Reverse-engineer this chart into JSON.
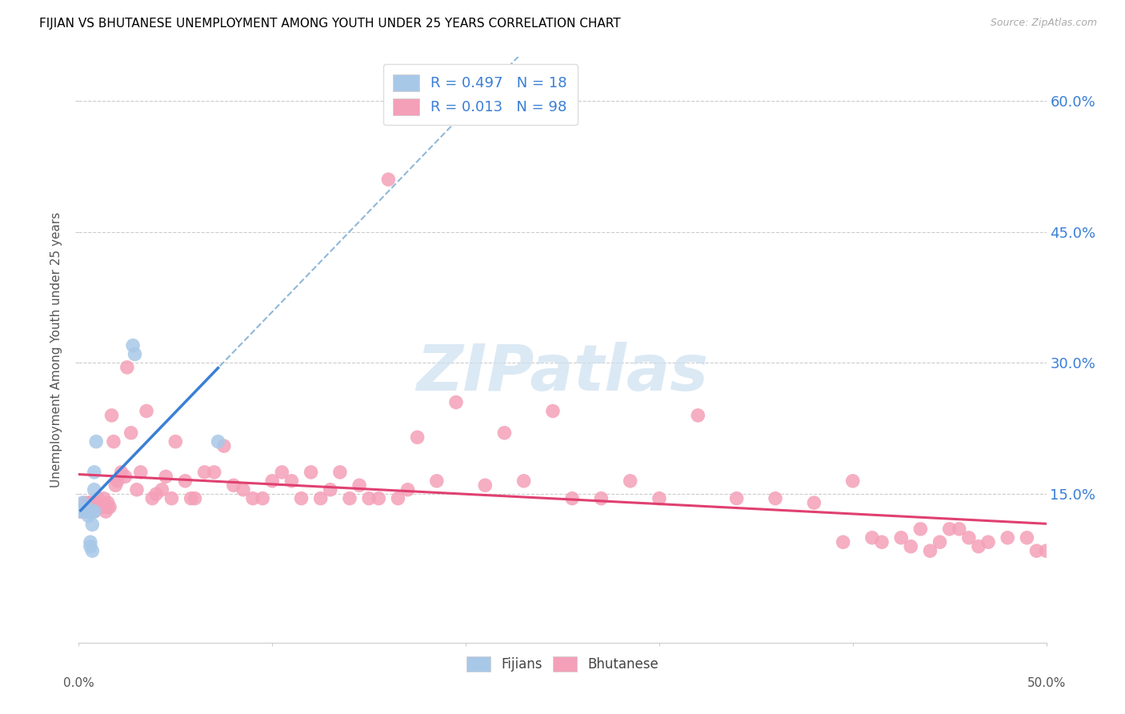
{
  "title": "FIJIAN VS BHUTANESE UNEMPLOYMENT AMONG YOUTH UNDER 25 YEARS CORRELATION CHART",
  "source": "Source: ZipAtlas.com",
  "ylabel": "Unemployment Among Youth under 25 years",
  "fijians_R": 0.497,
  "fijians_N": 18,
  "bhutanese_R": 0.013,
  "bhutanese_N": 98,
  "fijians_color": "#a8c8e8",
  "bhutanese_color": "#f4a0b8",
  "fijians_line_color": "#3a7fd5",
  "bhutanese_line_color": "#e04070",
  "trendline_dashed_color": "#90b8d8",
  "watermark_color": "#cce0f0",
  "xlim": [
    0.0,
    0.5
  ],
  "ylim": [
    -0.02,
    0.65
  ],
  "yticks": [
    0.15,
    0.3,
    0.45,
    0.6
  ],
  "ytick_labels": [
    "15.0%",
    "30.0%",
    "45.0%",
    "60.0%"
  ],
  "fijians_x": [
    0.001,
    0.002,
    0.003,
    0.004,
    0.005,
    0.005,
    0.006,
    0.006,
    0.007,
    0.007,
    0.007,
    0.008,
    0.008,
    0.008,
    0.009,
    0.028,
    0.029,
    0.072
  ],
  "fijians_y": [
    0.13,
    0.14,
    0.13,
    0.135,
    0.125,
    0.13,
    0.095,
    0.09,
    0.085,
    0.115,
    0.13,
    0.13,
    0.155,
    0.175,
    0.21,
    0.32,
    0.31,
    0.21
  ],
  "bhutanese_x": [
    0.001,
    0.002,
    0.003,
    0.004,
    0.005,
    0.005,
    0.006,
    0.006,
    0.007,
    0.007,
    0.008,
    0.008,
    0.009,
    0.01,
    0.01,
    0.011,
    0.012,
    0.013,
    0.014,
    0.015,
    0.015,
    0.016,
    0.017,
    0.018,
    0.019,
    0.02,
    0.022,
    0.024,
    0.025,
    0.027,
    0.03,
    0.032,
    0.035,
    0.038,
    0.04,
    0.043,
    0.045,
    0.048,
    0.05,
    0.055,
    0.058,
    0.06,
    0.065,
    0.07,
    0.075,
    0.08,
    0.085,
    0.09,
    0.095,
    0.1,
    0.105,
    0.11,
    0.115,
    0.12,
    0.125,
    0.13,
    0.135,
    0.14,
    0.145,
    0.15,
    0.155,
    0.16,
    0.165,
    0.17,
    0.175,
    0.185,
    0.195,
    0.21,
    0.22,
    0.23,
    0.245,
    0.255,
    0.27,
    0.285,
    0.3,
    0.32,
    0.34,
    0.36,
    0.38,
    0.395,
    0.4,
    0.41,
    0.415,
    0.425,
    0.43,
    0.435,
    0.44,
    0.445,
    0.45,
    0.455,
    0.46,
    0.465,
    0.47,
    0.48,
    0.49,
    0.495,
    0.5,
    0.505
  ],
  "bhutanese_y": [
    0.13,
    0.135,
    0.14,
    0.13,
    0.14,
    0.135,
    0.13,
    0.14,
    0.14,
    0.135,
    0.13,
    0.14,
    0.14,
    0.135,
    0.145,
    0.14,
    0.135,
    0.145,
    0.13,
    0.135,
    0.14,
    0.135,
    0.24,
    0.21,
    0.16,
    0.165,
    0.175,
    0.17,
    0.295,
    0.22,
    0.155,
    0.175,
    0.245,
    0.145,
    0.15,
    0.155,
    0.17,
    0.145,
    0.21,
    0.165,
    0.145,
    0.145,
    0.175,
    0.175,
    0.205,
    0.16,
    0.155,
    0.145,
    0.145,
    0.165,
    0.175,
    0.165,
    0.145,
    0.175,
    0.145,
    0.155,
    0.175,
    0.145,
    0.16,
    0.145,
    0.145,
    0.51,
    0.145,
    0.155,
    0.215,
    0.165,
    0.255,
    0.16,
    0.22,
    0.165,
    0.245,
    0.145,
    0.145,
    0.165,
    0.145,
    0.24,
    0.145,
    0.145,
    0.14,
    0.095,
    0.165,
    0.1,
    0.095,
    0.1,
    0.09,
    0.11,
    0.085,
    0.095,
    0.11,
    0.11,
    0.1,
    0.09,
    0.095,
    0.1,
    0.1,
    0.085,
    0.085,
    0.085
  ]
}
